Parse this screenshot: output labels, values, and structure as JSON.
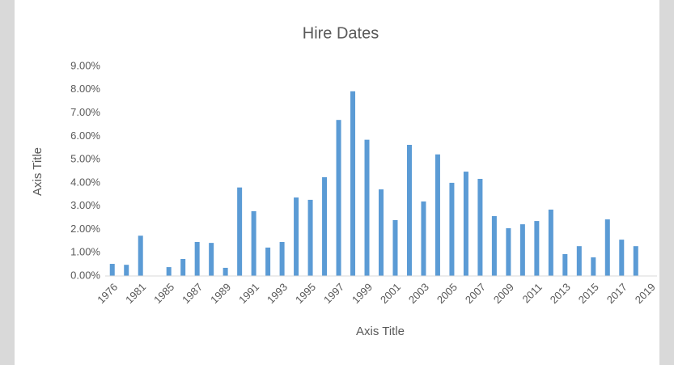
{
  "chart_data": {
    "type": "bar",
    "title": "Hire Dates",
    "x_label": "Axis Title",
    "y_label": "Axis Title",
    "categories": [
      "1976",
      null,
      "1981",
      null,
      "1985",
      null,
      "1987",
      null,
      "1989",
      null,
      "1991",
      null,
      "1993",
      null,
      "1995",
      null,
      "1997",
      null,
      "1999",
      null,
      "2001",
      null,
      "2003",
      null,
      "2005",
      null,
      "2007",
      null,
      "2009",
      null,
      "2011",
      null,
      "2013",
      null,
      "2015",
      null,
      "2017",
      null,
      "2019"
    ],
    "values": [
      0.52,
      0.48,
      1.73,
      null,
      0.38,
      0.73,
      1.46,
      1.42,
      0.35,
      3.8,
      2.78,
      1.22,
      1.46,
      3.37,
      3.27,
      4.24,
      6.7,
      7.93,
      5.85,
      3.72,
      2.4,
      5.63,
      3.2,
      5.22,
      4.0,
      4.48,
      4.17,
      2.57,
      2.05,
      2.22,
      2.36,
      2.85,
      0.94,
      1.28,
      0.8,
      2.43,
      1.56,
      1.28,
      null
    ],
    "color": "#5b9bd5",
    "ylim": [
      0,
      9
    ],
    "yticks": [
      {
        "value": 0,
        "label": "0.00%"
      },
      {
        "value": 1,
        "label": "1.00%"
      },
      {
        "value": 2,
        "label": "2.00%"
      },
      {
        "value": 3,
        "label": "3.00%"
      },
      {
        "value": 4,
        "label": "4.00%"
      },
      {
        "value": 5,
        "label": "5.00%"
      },
      {
        "value": 6,
        "label": "6.00%"
      },
      {
        "value": 7,
        "label": "7.00%"
      },
      {
        "value": 8,
        "label": "8.00%"
      },
      {
        "value": 9,
        "label": "9.00%"
      }
    ],
    "grid": false
  }
}
